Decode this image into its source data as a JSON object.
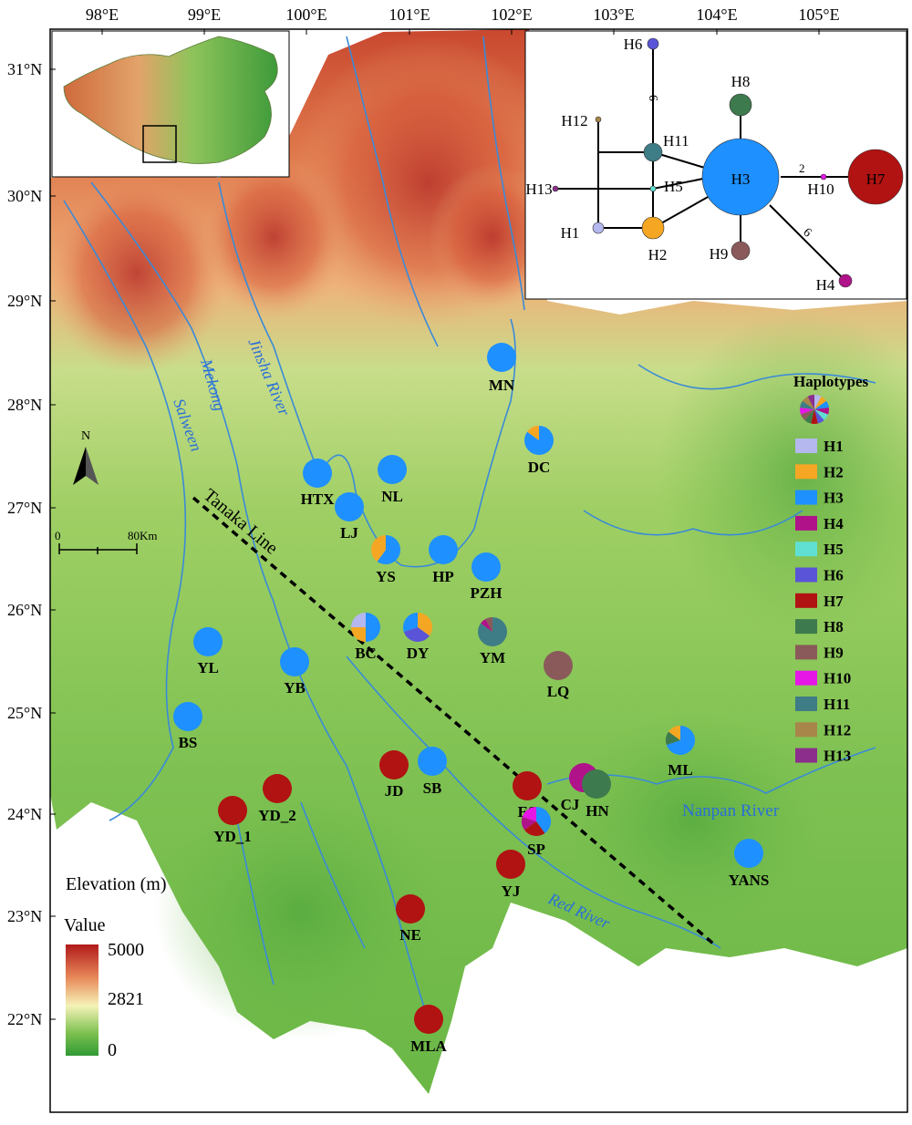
{
  "map": {
    "lat_labels": [
      "31°N",
      "30°N",
      "29°N",
      "28°N",
      "27°N",
      "26°N",
      "25°N",
      "24°N",
      "23°N",
      "22°N"
    ],
    "lon_labels": [
      "98°E",
      "99°E",
      "100°E",
      "101°E",
      "102°E",
      "103°E",
      "104°E",
      "105°E"
    ],
    "north_label": "N",
    "scale_start": "0",
    "scale_end": "80Km",
    "tanaka_label": "Tanaka Line",
    "elevation_title": "Elevation (m)",
    "legend_value_label": "Value",
    "legend_max": "5000",
    "legend_mid": "2821",
    "legend_min": "0",
    "rivers": [
      "Mekong",
      "Jinsha River",
      "Salween",
      "Red River",
      "Nanpan River"
    ]
  },
  "haplotypes_title": "Haplotypes",
  "haplotypes": [
    {
      "id": "H1",
      "color": "#b4b8ef"
    },
    {
      "id": "H2",
      "color": "#f5a623"
    },
    {
      "id": "H3",
      "color": "#1e90ff"
    },
    {
      "id": "H4",
      "color": "#b0128a"
    },
    {
      "id": "H5",
      "color": "#5fe0d2"
    },
    {
      "id": "H6",
      "color": "#5a55d8"
    },
    {
      "id": "H7",
      "color": "#b11212"
    },
    {
      "id": "H8",
      "color": "#3d7a4d"
    },
    {
      "id": "H9",
      "color": "#8a5a5a"
    },
    {
      "id": "H10",
      "color": "#e616e6"
    },
    {
      "id": "H11",
      "color": "#3e7c86"
    },
    {
      "id": "H12",
      "color": "#a8864a"
    },
    {
      "id": "H13",
      "color": "#8c2f8c"
    }
  ],
  "populations": [
    {
      "id": "MN",
      "comp": {
        "H3": 1
      }
    },
    {
      "id": "DC",
      "comp": {
        "H3": 0.85,
        "H2": 0.15
      }
    },
    {
      "id": "HTX",
      "comp": {
        "H3": 1
      }
    },
    {
      "id": "NL",
      "comp": {
        "H3": 1
      }
    },
    {
      "id": "LJ",
      "comp": {
        "H3": 1
      }
    },
    {
      "id": "YS",
      "comp": {
        "H3": 0.6,
        "H2": 0.4
      }
    },
    {
      "id": "HP",
      "comp": {
        "H3": 1
      }
    },
    {
      "id": "PZH",
      "comp": {
        "H3": 1
      }
    },
    {
      "id": "BC",
      "comp": {
        "H3": 0.5,
        "H2": 0.25,
        "H1": 0.25
      }
    },
    {
      "id": "DY",
      "comp": {
        "H2": 0.35,
        "H6": 0.35,
        "H3": 0.3
      }
    },
    {
      "id": "YM",
      "comp": {
        "H11": 0.85,
        "H4": 0.07,
        "H9": 0.08
      }
    },
    {
      "id": "LQ",
      "comp": {
        "H9": 1
      }
    },
    {
      "id": "YL",
      "comp": {
        "H3": 1
      }
    },
    {
      "id": "YB",
      "comp": {
        "H3": 1
      }
    },
    {
      "id": "BS",
      "comp": {
        "H3": 1
      }
    },
    {
      "id": "JD",
      "comp": {
        "H7": 1
      }
    },
    {
      "id": "SB",
      "comp": {
        "H3": 1
      }
    },
    {
      "id": "ES",
      "comp": {
        "H7": 1
      }
    },
    {
      "id": "CJ",
      "comp": {
        "H4": 1
      }
    },
    {
      "id": "HN",
      "comp": {
        "H8": 1
      }
    },
    {
      "id": "ML",
      "comp": {
        "H3": 0.7,
        "H8": 0.15,
        "H2": 0.15
      }
    },
    {
      "id": "YD_1",
      "comp": {
        "H7": 1
      }
    },
    {
      "id": "YD_2",
      "comp": {
        "H7": 1
      }
    },
    {
      "id": "SP",
      "comp": {
        "H3": 0.4,
        "H7": 0.25,
        "H4": 0.15,
        "H10": 0.2
      }
    },
    {
      "id": "YJ",
      "comp": {
        "H7": 1
      }
    },
    {
      "id": "YANS",
      "comp": {
        "H3": 1
      }
    },
    {
      "id": "NE",
      "comp": {
        "H7": 1
      }
    },
    {
      "id": "MLA",
      "comp": {
        "H7": 1
      }
    }
  ],
  "network": {
    "nodes": [
      "H1",
      "H2",
      "H3",
      "H4",
      "H5",
      "H6",
      "H7",
      "H8",
      "H9",
      "H10",
      "H11",
      "H12",
      "H13"
    ],
    "step_labels": [
      "6",
      "2",
      "6"
    ]
  }
}
